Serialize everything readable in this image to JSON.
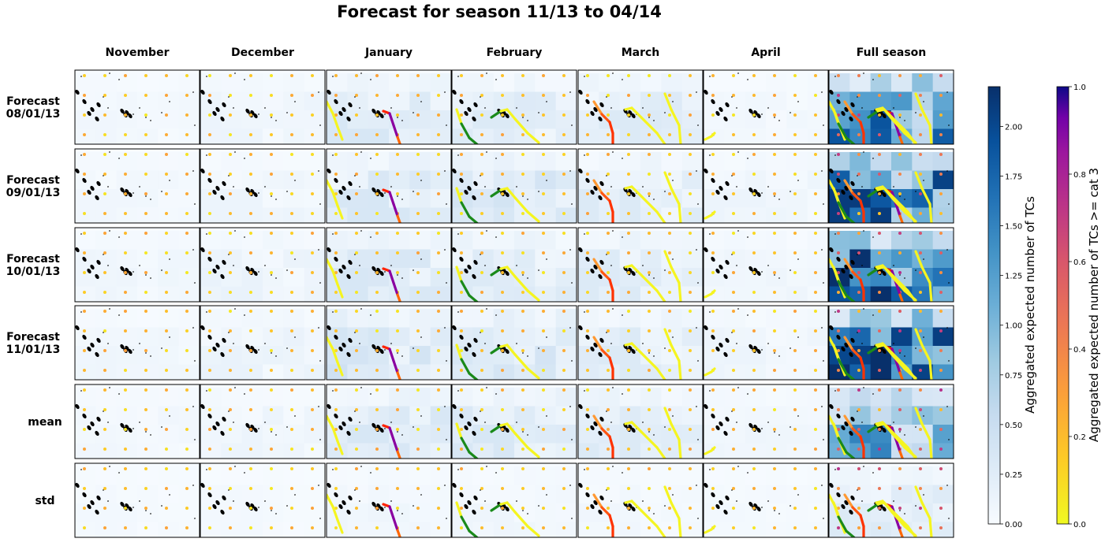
{
  "figure": {
    "title": "Forecast for season 11/13 to 04/14"
  },
  "chart_data": {
    "type": "heatmap",
    "title": "Forecast for season 11/13 to 04/14",
    "columns": [
      "November",
      "December",
      "January",
      "February",
      "March",
      "April",
      "Full season"
    ],
    "rows": [
      "Forecast\n08/01/13",
      "Forecast\n09/01/13",
      "Forecast\n10/01/13",
      "Forecast\n11/01/13",
      "mean",
      "std"
    ],
    "colorbars": [
      {
        "label": "Aggregated expected number of TCs",
        "colormap": "Blues",
        "range": [
          0,
          2.2
        ],
        "ticks": [
          "0.00",
          "0.25",
          "0.50",
          "0.75",
          "1.00",
          "1.25",
          "1.50",
          "1.75",
          "2.00"
        ],
        "tick_values": [
          0,
          0.25,
          0.5,
          0.75,
          1.0,
          1.25,
          1.5,
          1.75,
          2.0
        ]
      },
      {
        "label": "Aggregated expected number of TCs >= cat 3",
        "colormap": "plasma_r",
        "range": [
          0,
          1.0
        ],
        "ticks": [
          "0.0",
          "0.2",
          "0.4",
          "0.6",
          "0.8",
          "1.0"
        ],
        "tick_values": [
          0,
          0.2,
          0.4,
          0.6,
          0.8,
          1.0
        ]
      }
    ],
    "panel_intensity_max": {
      "Forecast\n08/01/13": [
        0.08,
        0.12,
        0.35,
        0.3,
        0.3,
        0.08,
        1.9
      ],
      "Forecast\n09/01/13": [
        0.08,
        0.12,
        0.35,
        0.4,
        0.3,
        0.12,
        2.1
      ],
      "Forecast\n10/01/13": [
        0.1,
        0.15,
        0.35,
        0.3,
        0.3,
        0.1,
        2.2
      ],
      "Forecast\n11/01/13": [
        0.1,
        0.15,
        0.45,
        0.4,
        0.3,
        0.12,
        2.2
      ],
      "mean": [
        0.08,
        0.12,
        0.35,
        0.35,
        0.3,
        0.1,
        1.5
      ],
      "std": [
        0.05,
        0.05,
        0.1,
        0.1,
        0.08,
        0.05,
        0.3
      ]
    }
  }
}
